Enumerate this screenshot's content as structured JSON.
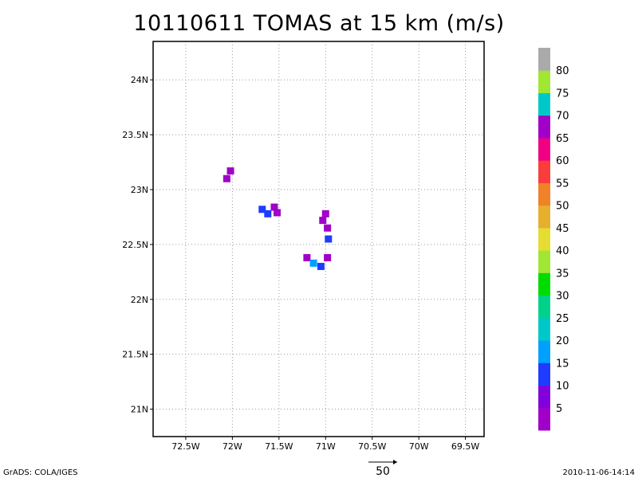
{
  "title": "10110611 TOMAS at 15 km (m/s)",
  "axes": {
    "x_ticks": [
      {
        "lon": -72.5,
        "label": "72.5W"
      },
      {
        "lon": -72.0,
        "label": "72W"
      },
      {
        "lon": -71.5,
        "label": "71.5W"
      },
      {
        "lon": -71.0,
        "label": "71W"
      },
      {
        "lon": -70.5,
        "label": "70.5W"
      },
      {
        "lon": -70.0,
        "label": "70W"
      },
      {
        "lon": -69.5,
        "label": "69.5W"
      }
    ],
    "y_ticks": [
      {
        "lat": 21.0,
        "label": "21N"
      },
      {
        "lat": 21.5,
        "label": "21.5N"
      },
      {
        "lat": 22.0,
        "label": "22N"
      },
      {
        "lat": 22.5,
        "label": "22.5N"
      },
      {
        "lat": 23.0,
        "label": "23N"
      },
      {
        "lat": 23.5,
        "label": "23.5N"
      },
      {
        "lat": 24.0,
        "label": "24N"
      }
    ],
    "lon_range": [
      -72.85,
      -69.3
    ],
    "lat_range": [
      20.75,
      24.35
    ],
    "grid": true
  },
  "colorbar": {
    "labels": [
      "5",
      "10",
      "15",
      "20",
      "25",
      "30",
      "35",
      "40",
      "45",
      "50",
      "55",
      "60",
      "65",
      "70",
      "75",
      "80"
    ],
    "colors": [
      "#a000c8",
      "#8200dc",
      "#1e3cff",
      "#00a0ff",
      "#00c8c8",
      "#00d28c",
      "#00dc00",
      "#a0e632",
      "#e6dc32",
      "#e6af2d",
      "#f08228",
      "#fa3c3c",
      "#f00082",
      "#a000c8",
      "#00c8c8",
      "#a0e632",
      "#aaaaaa"
    ]
  },
  "chart_data": {
    "type": "heatmap",
    "title": "10110611 TOMAS at 15 km (m/s)",
    "xlabel": "",
    "ylabel": "",
    "xlim": [
      -72.85,
      -69.3
    ],
    "ylim": [
      20.75,
      24.35
    ],
    "cells": [
      {
        "lon": -72.02,
        "lat": 23.17,
        "level": 0
      },
      {
        "lon": -72.06,
        "lat": 23.1,
        "level": 0
      },
      {
        "lon": -71.68,
        "lat": 22.82,
        "level": 2
      },
      {
        "lon": -71.62,
        "lat": 22.78,
        "level": 2
      },
      {
        "lon": -71.55,
        "lat": 22.84,
        "level": 0
      },
      {
        "lon": -71.52,
        "lat": 22.79,
        "level": 0
      },
      {
        "lon": -71.03,
        "lat": 22.72,
        "level": 0
      },
      {
        "lon": -70.98,
        "lat": 22.65,
        "level": 0
      },
      {
        "lon": -71.0,
        "lat": 22.78,
        "level": 0
      },
      {
        "lon": -70.97,
        "lat": 22.55,
        "level": 2
      },
      {
        "lon": -71.2,
        "lat": 22.38,
        "level": 0
      },
      {
        "lon": -71.13,
        "lat": 22.33,
        "level": 3
      },
      {
        "lon": -71.05,
        "lat": 22.3,
        "level": 2
      },
      {
        "lon": -70.98,
        "lat": 22.38,
        "level": 0
      }
    ],
    "wind_reference": {
      "value": "50"
    }
  },
  "footer": {
    "left": "GrADS: COLA/IGES",
    "right": "2010-11-06-14:14",
    "ref_label": "50"
  }
}
